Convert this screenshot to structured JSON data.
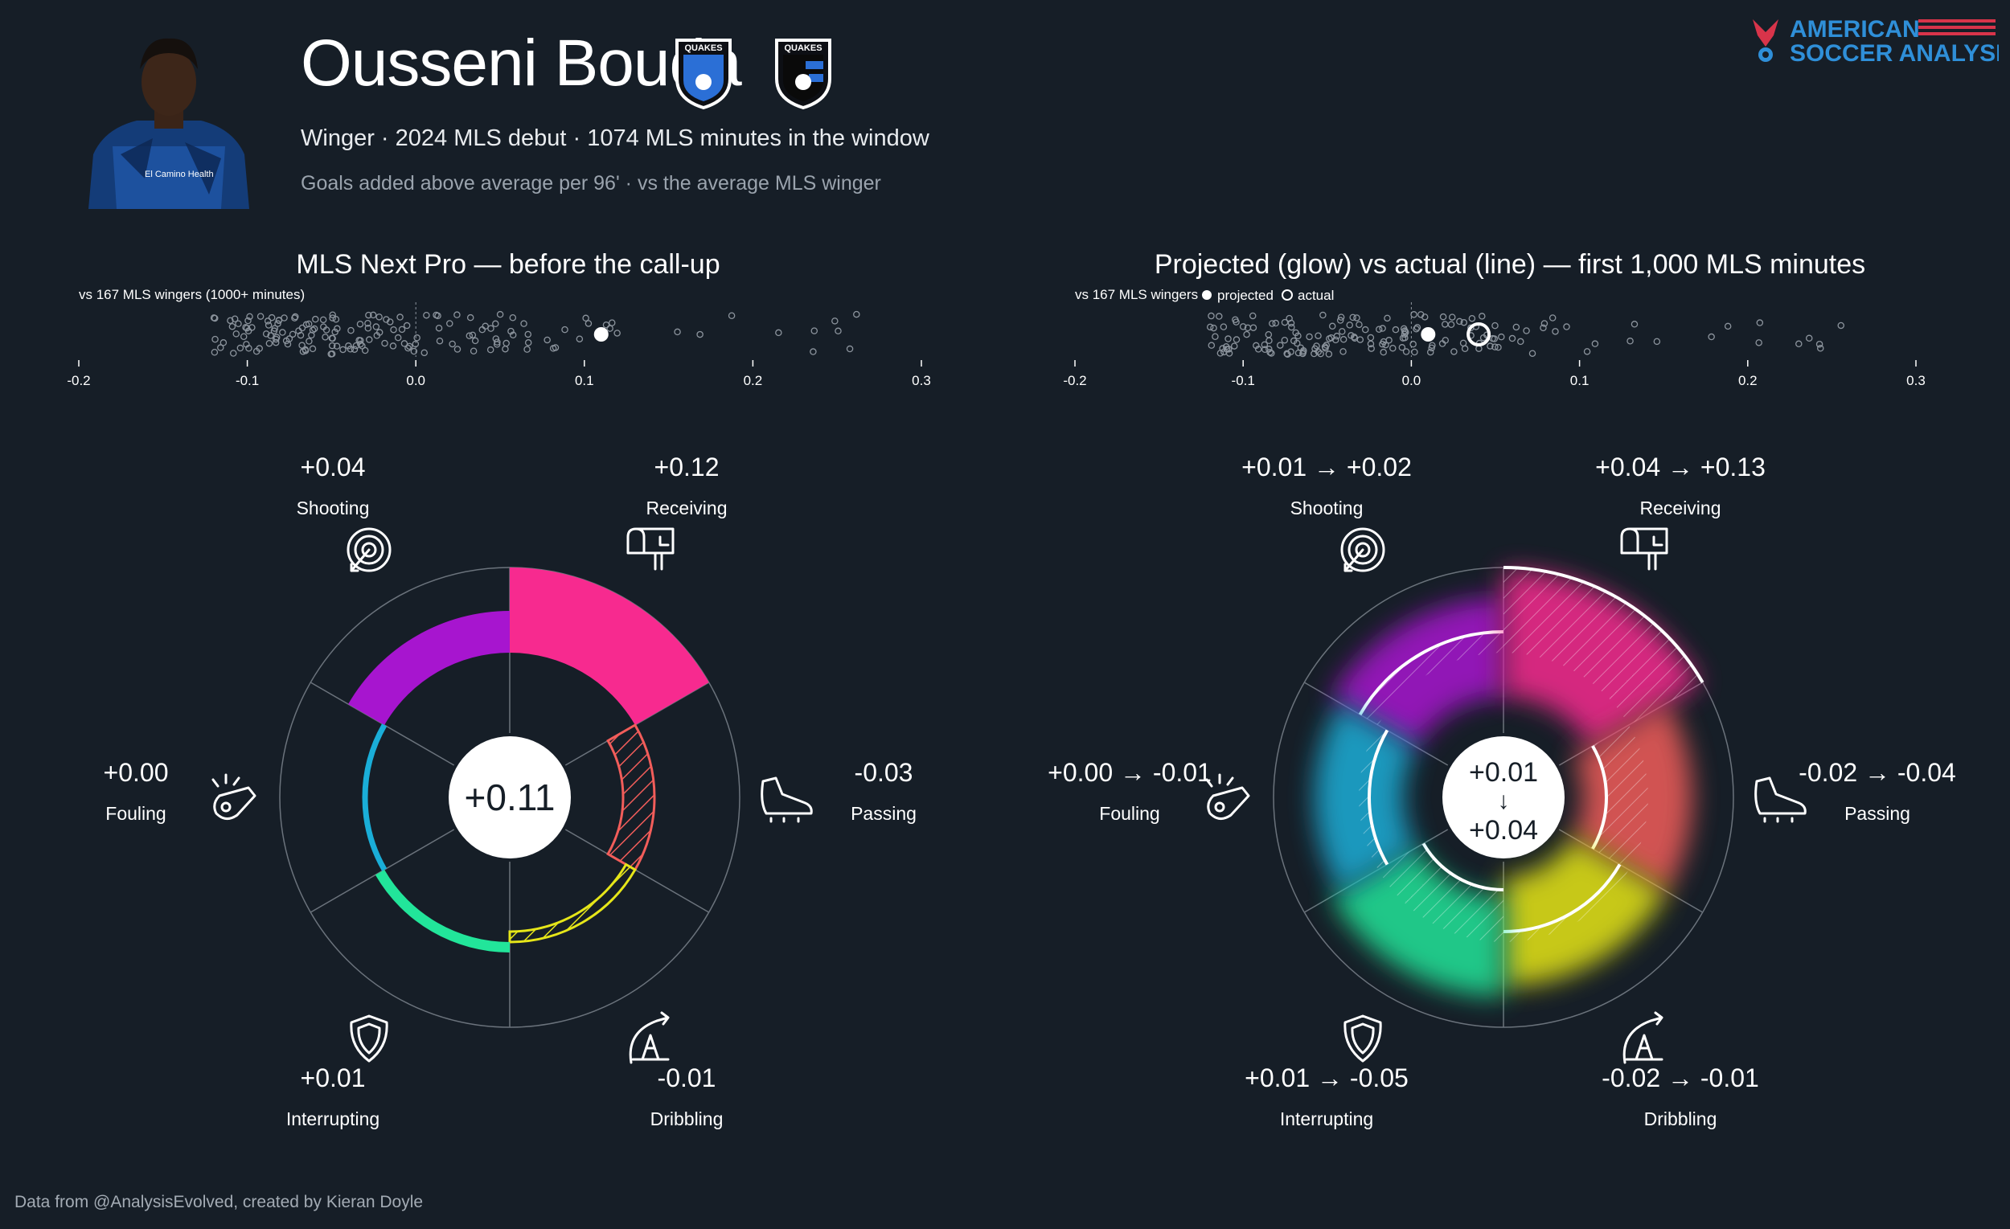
{
  "header": {
    "player_name": "Ousseni Bouda",
    "subtitle": "Winger · 2024 MLS debut · 1074 MLS minutes in the window",
    "caption": "Goals added above average per 96' · vs the average MLS winger",
    "club_crest_text": "QUAKES",
    "sponsor_text": "El Camino Health",
    "brand_line1": "AMERICAN",
    "brand_line2": "SOCCER ANALYSIS"
  },
  "footer": {
    "credit": "Data from @AnalysisEvolved, created by Kieran Doyle"
  },
  "colors": {
    "background": "#161e27",
    "shooting": "#a715cf",
    "receiving": "#f72a8f",
    "passing": "#f25d5a",
    "dribbling": "#e6e619",
    "interrupting": "#22e59a",
    "fouling": "#1aaed8",
    "brand_red": "#d8344a",
    "brand_blue": "#2f8fd8"
  },
  "icons": {
    "shooting": "target-arrow-icon",
    "receiving": "mailbox-icon",
    "passing": "boot-icon",
    "dribbling": "cone-arrow-icon",
    "interrupting": "shield-icon",
    "fouling": "whistle-icon"
  },
  "chart_data": [
    {
      "type": "strip",
      "title": "MLS Next Pro — before the call-up",
      "note": "vs 167 MLS wingers (1000+ minutes)",
      "xlim": [
        -0.2,
        0.3
      ],
      "ticks": [
        "-0.2",
        "-0.1",
        "0.0",
        "0.1",
        "0.2",
        "0.3"
      ],
      "tick_values": [
        -0.2,
        -0.1,
        0.0,
        0.1,
        0.2,
        0.3
      ],
      "population_count": 167,
      "highlight": {
        "projected": 0.11
      }
    },
    {
      "type": "polar-bar",
      "center_label": "+0.11",
      "total": 0.11,
      "categories": [
        {
          "key": "shooting",
          "label": "Shooting",
          "value_label": "+0.04",
          "value": 0.04
        },
        {
          "key": "receiving",
          "label": "Receiving",
          "value_label": "+0.12",
          "value": 0.12
        },
        {
          "key": "passing",
          "label": "Passing",
          "value_label": "-0.03",
          "value": -0.03
        },
        {
          "key": "dribbling",
          "label": "Dribbling",
          "value_label": "-0.01",
          "value": -0.01
        },
        {
          "key": "interrupting",
          "label": "Interrupting",
          "value_label": "+0.01",
          "value": 0.01
        },
        {
          "key": "fouling",
          "label": "Fouling",
          "value_label": "+0.00",
          "value": 0.0
        }
      ]
    },
    {
      "type": "strip",
      "title": "Projected (glow) vs actual (line) — first 1,000 MLS minutes",
      "note": "vs 167 MLS wingers",
      "legend": {
        "projected": "projected",
        "actual": "actual"
      },
      "xlim": [
        -0.2,
        0.3
      ],
      "ticks": [
        "-0.2",
        "-0.1",
        "0.0",
        "0.1",
        "0.2",
        "0.3"
      ],
      "tick_values": [
        -0.2,
        -0.1,
        0.0,
        0.1,
        0.2,
        0.3
      ],
      "population_count": 167,
      "highlight": {
        "projected": 0.01,
        "actual": 0.04
      }
    },
    {
      "type": "polar-bar",
      "center_top": "+0.01",
      "center_arrow": "↓",
      "center_bottom": "+0.04",
      "total_projected": 0.01,
      "total_actual": 0.04,
      "categories": [
        {
          "key": "shooting",
          "label": "Shooting",
          "value_label": "+0.01 → +0.02",
          "projected": 0.01,
          "actual": 0.02
        },
        {
          "key": "receiving",
          "label": "Receiving",
          "value_label": "+0.04 → +0.13",
          "projected": 0.04,
          "actual": 0.13
        },
        {
          "key": "passing",
          "label": "Passing",
          "value_label": "-0.02 → -0.04",
          "projected": -0.02,
          "actual": -0.04
        },
        {
          "key": "dribbling",
          "label": "Dribbling",
          "value_label": "-0.02 → -0.01",
          "projected": -0.02,
          "actual": -0.01
        },
        {
          "key": "interrupting",
          "label": "Interrupting",
          "value_label": "+0.01 → -0.05",
          "projected": 0.01,
          "actual": -0.05
        },
        {
          "key": "fouling",
          "label": "Fouling",
          "value_label": "+0.00 → -0.01",
          "projected": 0.0,
          "actual": -0.01
        }
      ]
    }
  ]
}
